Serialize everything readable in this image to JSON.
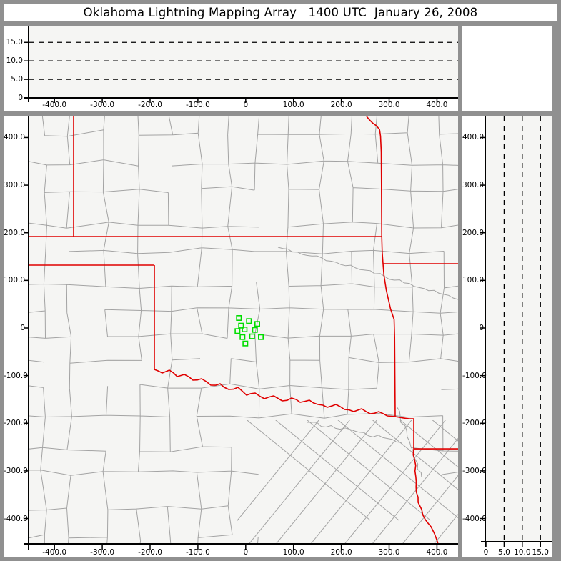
{
  "title": "Oklahoma Lightning Mapping Array   1400 UTC  January 26, 2008",
  "colors": {
    "frame": "#909090",
    "panel_bg": "#ffffff",
    "plot_bg": "#f5f5f3",
    "axis": "#000000",
    "county_line": "#a3a3a3",
    "state_border": "#e00000",
    "station": "#00dd00",
    "dashed_line": "#000000"
  },
  "top_panel": {
    "y_ticks": [
      {
        "label": "15.0",
        "value": 15
      },
      {
        "label": "10.0",
        "value": 10
      },
      {
        "label": "5.0",
        "value": 5
      },
      {
        "label": "0",
        "value": 0
      }
    ],
    "x_ticks": [
      {
        "label": "-400.0",
        "value": -400
      },
      {
        "label": "-300.0",
        "value": -300
      },
      {
        "label": "-200.0",
        "value": -200
      },
      {
        "label": "-100.0",
        "value": -100
      },
      {
        "label": "0",
        "value": 0
      },
      {
        "label": "100.0",
        "value": 100
      },
      {
        "label": "200.0",
        "value": 200
      },
      {
        "label": "300.0",
        "value": 300
      },
      {
        "label": "400.0",
        "value": 400
      }
    ],
    "dashed_altitudes": [
      5,
      10,
      15
    ],
    "alt_range": [
      0,
      19.3
    ],
    "x_range": [
      -452.6,
      444.2
    ]
  },
  "map_panel": {
    "x_ticks": [
      {
        "label": "-400.0",
        "value": -400
      },
      {
        "label": "-300.0",
        "value": -300
      },
      {
        "label": "-200.0",
        "value": -200
      },
      {
        "label": "-100.0",
        "value": -100
      },
      {
        "label": "0",
        "value": 0
      },
      {
        "label": "100.0",
        "value": 100
      },
      {
        "label": "200.0",
        "value": 200
      },
      {
        "label": "300.0",
        "value": 300
      },
      {
        "label": "400.0",
        "value": 400
      }
    ],
    "y_ticks": [
      {
        "label": "400.0",
        "value": 400
      },
      {
        "label": "300.0",
        "value": 300
      },
      {
        "label": "200.0",
        "value": 200
      },
      {
        "label": "100.0",
        "value": 100
      },
      {
        "label": "0",
        "value": 0
      },
      {
        "label": "-100.0",
        "value": -100
      },
      {
        "label": "-200.0",
        "value": -200
      },
      {
        "label": "-300.0",
        "value": -300
      },
      {
        "label": "-400.0",
        "value": -400
      }
    ],
    "x_range": [
      -452.6,
      444.2
    ],
    "y_range": [
      -453.2,
      444.2
    ],
    "stations_km": [
      [
        -14.2,
        21.0
      ],
      [
        6.7,
        14.6
      ],
      [
        24.2,
        8.6
      ],
      [
        -9.7,
        5.0
      ],
      [
        -17.2,
        -6.5
      ],
      [
        -2.2,
        -3.0
      ],
      [
        19.3,
        -4.1
      ],
      [
        31.7,
        -19.1
      ],
      [
        13.3,
        -17.6
      ],
      [
        -6.7,
        -19.1
      ],
      [
        -0.7,
        -32.6
      ]
    ],
    "state_borders_km": {
      "colorado_kansas": [
        [
          -360,
          444.2
        ],
        [
          -360,
          192
        ]
      ],
      "kansas_oklahoma_37n": [
        [
          -452.6,
          192
        ],
        [
          284.5,
          192
        ]
      ],
      "texas_panhandle_36_5n": [
        [
          -452.6,
          132
        ],
        [
          -191,
          132
        ]
      ],
      "texas_oklahoma_100w": [
        [
          -191,
          132
        ],
        [
          -191,
          -87
        ]
      ],
      "red_river": [
        [
          -191,
          -87
        ],
        [
          -174.6,
          -94.6
        ],
        [
          -159.6,
          -88.6
        ],
        [
          -143.2,
          -102.1
        ],
        [
          -128.3,
          -97.6
        ],
        [
          -110.3,
          -109.6
        ],
        [
          -92.4,
          -106.6
        ],
        [
          -72.9,
          -120.1
        ],
        [
          -53.5,
          -117.1
        ],
        [
          -35.6,
          -129.1
        ],
        [
          -16.1,
          -124.6
        ],
        [
          1.8,
          -141.1
        ],
        [
          19.7,
          -136.6
        ],
        [
          39.2,
          -148.6
        ],
        [
          58.6,
          -142.6
        ],
        [
          76.5,
          -153.1
        ],
        [
          96,
          -147.1
        ],
        [
          113.9,
          -156.1
        ],
        [
          133.3,
          -151.6
        ],
        [
          151.3,
          -160.6
        ],
        [
          170.7,
          -166.6
        ],
        [
          188.6,
          -160.6
        ],
        [
          206.6,
          -171.1
        ],
        [
          226,
          -175.6
        ],
        [
          242.5,
          -169.6
        ],
        [
          260.4,
          -180.1
        ],
        [
          278.3,
          -175.6
        ],
        [
          296.3,
          -184.6
        ],
        [
          312.7,
          -186.1
        ],
        [
          330,
          -189
        ],
        [
          351.6,
          -190.6
        ]
      ],
      "east_border": [
        [
          252.9,
          444.2
        ],
        [
          259,
          437
        ],
        [
          266,
          430
        ],
        [
          273,
          425
        ],
        [
          280,
          417
        ],
        [
          282,
          403
        ],
        [
          283.5,
          370
        ],
        [
          284,
          300
        ],
        [
          284.5,
          192
        ],
        [
          285.5,
          160
        ],
        [
          287.3,
          135
        ],
        [
          289,
          112
        ],
        [
          294,
          80
        ],
        [
          303,
          40
        ],
        [
          310.5,
          18
        ],
        [
          311.5,
          -20
        ],
        [
          312,
          -100
        ],
        [
          312.5,
          -160
        ],
        [
          312.7,
          -186
        ]
      ],
      "missouri_arkansas": [
        [
          287.3,
          135
        ],
        [
          444.2,
          135
        ]
      ],
      "arkansas_texas": [
        [
          351.6,
          -190.6
        ],
        [
          351.6,
          -253.7
        ]
      ],
      "arkansas_louisiana": [
        [
          351.6,
          -253.7
        ],
        [
          444.2,
          -253.7
        ]
      ],
      "texas_louisiana": [
        [
          351.6,
          -253.7
        ],
        [
          355.7,
          -311.7
        ],
        [
          360.6,
          -366.2
        ],
        [
          368.1,
          -381.2
        ],
        [
          375.6,
          -402.2
        ],
        [
          387.5,
          -417.2
        ],
        [
          395,
          -432.2
        ],
        [
          401,
          -448.7
        ],
        [
          402,
          -453.2
        ]
      ]
    }
  },
  "right_panel": {
    "x_ticks": [
      {
        "label": "0",
        "value": 0
      },
      {
        "label": "5.0",
        "value": 5
      },
      {
        "label": "10.0",
        "value": 10
      },
      {
        "label": "15.0",
        "value": 15
      }
    ],
    "y_ticks": [
      {
        "label": "400.0",
        "value": 400
      },
      {
        "label": "300.0",
        "value": 300
      },
      {
        "label": "200.0",
        "value": 200
      },
      {
        "label": "100.0",
        "value": 100
      },
      {
        "label": "0",
        "value": 0
      },
      {
        "label": "-100.0",
        "value": -100
      },
      {
        "label": "-200.0",
        "value": -200
      },
      {
        "label": "-300.0",
        "value": -300
      },
      {
        "label": "-400.0",
        "value": -400
      }
    ],
    "dashed_altitudes": [
      5,
      10,
      15
    ],
    "alt_range": [
      0,
      18.1
    ],
    "y_range": [
      -448.8,
      444.2
    ]
  },
  "chart_data": [
    {
      "type": "scatter",
      "panel": "altitude-vs-east-west",
      "xlim": [
        -452.6,
        444.2
      ],
      "ylim": [
        0,
        19.3
      ],
      "x_tick_values": [
        -400,
        -300,
        -200,
        -100,
        0,
        100,
        200,
        300,
        400
      ],
      "y_tick_values": [
        0,
        5,
        10,
        15
      ],
      "gridlines_y_dashed": [
        5,
        10,
        15
      ],
      "series": []
    },
    {
      "type": "scatter",
      "panel": "plan-view-map",
      "xlim": [
        -452.6,
        444.2
      ],
      "ylim": [
        -453.2,
        444.2
      ],
      "x_tick_values": [
        -400,
        -300,
        -200,
        -100,
        0,
        100,
        200,
        300,
        400
      ],
      "y_tick_values": [
        400,
        300,
        200,
        100,
        0,
        -100,
        -200,
        -300,
        -400
      ],
      "series": [
        {
          "name": "LMA station markers",
          "marker": "open-square",
          "color": "#00dd00",
          "points": [
            [
              -14.2,
              21.0
            ],
            [
              6.7,
              14.6
            ],
            [
              24.2,
              8.6
            ],
            [
              -9.7,
              5.0
            ],
            [
              -17.2,
              -6.5
            ],
            [
              -2.2,
              -3.0
            ],
            [
              19.3,
              -4.1
            ],
            [
              31.7,
              -19.1
            ],
            [
              13.3,
              -17.6
            ],
            [
              -6.7,
              -19.1
            ],
            [
              -0.7,
              -32.6
            ]
          ]
        }
      ]
    },
    {
      "type": "scatter",
      "panel": "altitude-vs-north-south",
      "xlim": [
        0,
        18.1
      ],
      "ylim": [
        -448.8,
        444.2
      ],
      "x_tick_values": [
        0,
        5,
        10,
        15
      ],
      "y_tick_values": [
        400,
        300,
        200,
        100,
        0,
        -100,
        -200,
        -300,
        -400
      ],
      "gridlines_x_dashed": [
        5,
        10,
        15
      ],
      "series": []
    }
  ]
}
